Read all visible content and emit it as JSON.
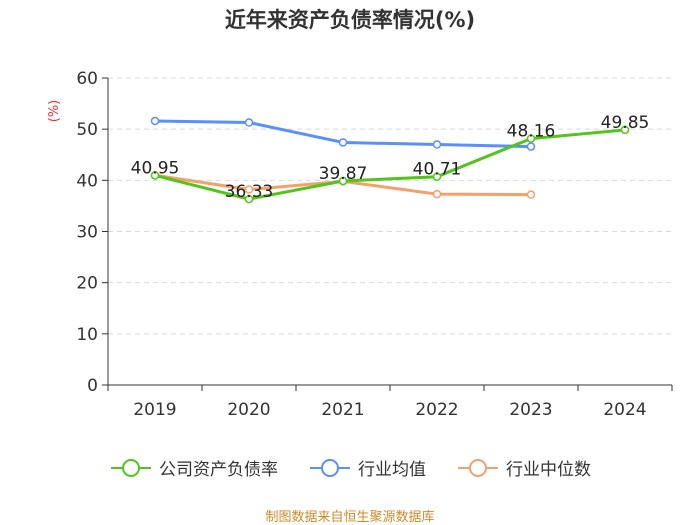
{
  "chart_data": {
    "type": "line",
    "title": "近年来资产负债率情况(%)",
    "ylabel": "(%)",
    "xlabel": "",
    "ylim": [
      0,
      60
    ],
    "yticks": [
      0,
      10,
      20,
      30,
      40,
      50,
      60
    ],
    "categories": [
      "2019",
      "2020",
      "2021",
      "2022",
      "2023",
      "2024"
    ],
    "series": [
      {
        "name": "公司资产负债率",
        "color": "#52c41a",
        "values": [
          40.95,
          36.33,
          39.87,
          40.71,
          48.16,
          49.85
        ],
        "data_labels": [
          "40.95",
          "36.33",
          "39.87",
          "40.71",
          "48.16",
          "49.85"
        ]
      },
      {
        "name": "行业均值",
        "color": "#5b8ff9",
        "values": [
          51.6,
          51.3,
          47.4,
          47.0,
          46.6,
          null
        ]
      },
      {
        "name": "行业中位数",
        "color": "#f5a06a",
        "values": [
          41.0,
          38.2,
          39.8,
          37.3,
          37.2,
          null
        ]
      }
    ],
    "grid": true,
    "legend_position": "bottom"
  },
  "footer": "制图数据来自恒生聚源数据库"
}
